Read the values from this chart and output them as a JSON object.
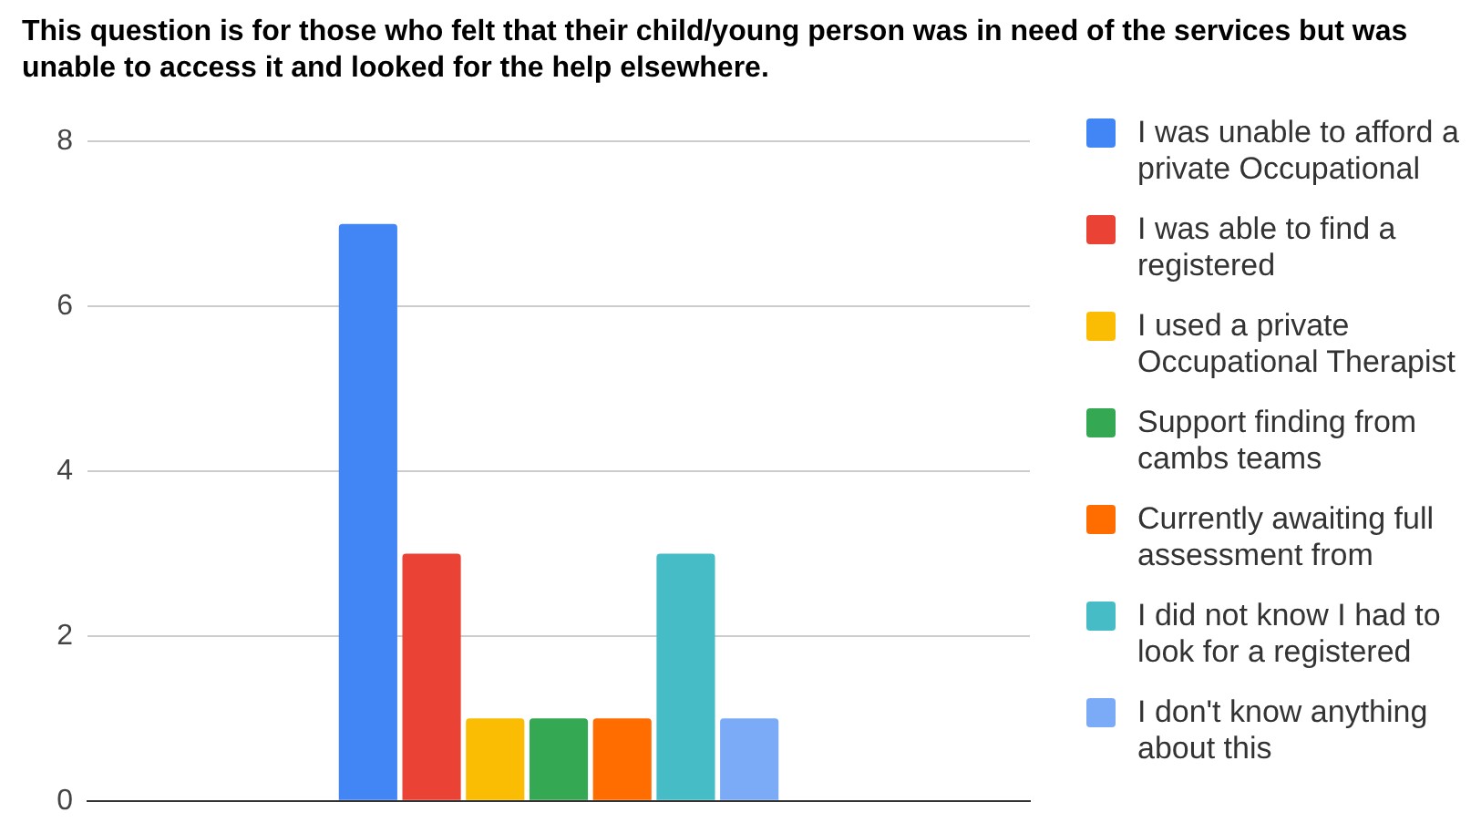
{
  "chart_data": {
    "type": "bar",
    "title": "This question is for those who felt that their child/young person was in need of the services but was unable to access it and looked for the help elsewhere.",
    "categories": [
      null
    ],
    "series": [
      {
        "name": "I was unable to afford a private Occupational",
        "color": "#4285f4",
        "values": [
          7
        ]
      },
      {
        "name": "I was able to find a registered",
        "color": "#ea4335",
        "values": [
          3
        ]
      },
      {
        "name": "I used a private Occupational Therapist",
        "color": "#fbbc04",
        "values": [
          1
        ]
      },
      {
        "name": "Support finding from cambs teams",
        "color": "#34a853",
        "values": [
          1
        ]
      },
      {
        "name": "Currently awaiting full assessment from",
        "color": "#ff6d01",
        "values": [
          1
        ]
      },
      {
        "name": "I did not know I had to look for a registered",
        "color": "#46bdc6",
        "values": [
          3
        ]
      },
      {
        "name": "I don't know anything about this",
        "color": "#7baaf7",
        "values": [
          1
        ]
      }
    ],
    "ylim": [
      0,
      8
    ],
    "yticks": [
      0,
      2,
      4,
      6,
      8
    ],
    "grid": "y",
    "legend": "right"
  }
}
